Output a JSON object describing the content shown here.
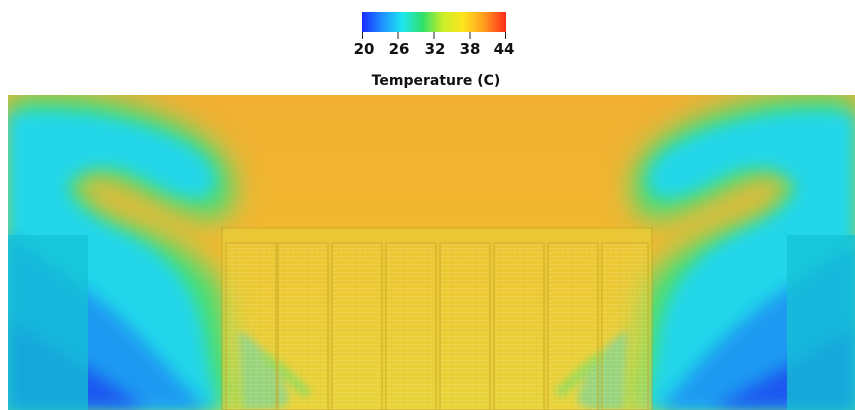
{
  "legend": {
    "title": "Temperature (C)",
    "ticks": [
      "20",
      "26",
      "32",
      "38",
      "44"
    ],
    "min": 20,
    "max": 44,
    "colorscale": [
      "#1a2cff",
      "#1e90ff",
      "#1ee6f0",
      "#2fe06a",
      "#c8ee2a",
      "#ffe61e",
      "#ff9a1e",
      "#ff2a1a"
    ]
  },
  "scene": {
    "description_colors": {
      "hot_region": "#f2b12e",
      "rack_yellow": "#e8d43a",
      "cold_region": "#1e8cf0",
      "ambient_cyan": "#20d8e8",
      "transition_green": "#3fe07a",
      "side_block": "#14c2d4"
    },
    "rack_count": 8
  }
}
